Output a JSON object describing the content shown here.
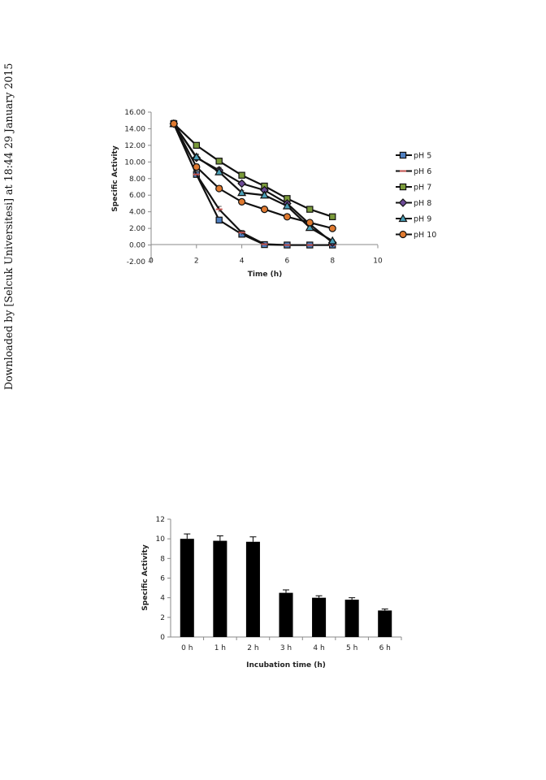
{
  "watermark": "Downloaded by [Selcuk Universitesi] at 18:44 29 January 2015",
  "chart_data": [
    {
      "type": "line",
      "xlabel": "Time (h)",
      "ylabel": "Specific Activity",
      "xlim": [
        0,
        10
      ],
      "ylim": [
        -2,
        16
      ],
      "x_ticks": [
        "0",
        "2",
        "4",
        "6",
        "8",
        "10"
      ],
      "y_ticks": [
        "-2.00",
        "0.00",
        "2.00",
        "4.00",
        "6.00",
        "8.00",
        "10.00",
        "12.00",
        "14.00",
        "16.00"
      ],
      "grid": false,
      "legend": "right",
      "x": [
        1,
        2,
        3,
        4,
        5,
        6,
        7,
        8
      ],
      "series": [
        {
          "name": "pH 5",
          "values": [
            14.6,
            8.5,
            3.0,
            1.3,
            0.05,
            0.0,
            0.0,
            0.0
          ],
          "marker": "square",
          "fill": "#4f7fc0",
          "color": "#111111"
        },
        {
          "name": "pH 6",
          "values": [
            14.6,
            8.5,
            4.3,
            1.5,
            0.1,
            0.0,
            0.0,
            0.0
          ],
          "marker": "dash",
          "fill": "#c0504d",
          "color": "#111111"
        },
        {
          "name": "pH 7",
          "values": [
            14.6,
            12.0,
            10.1,
            8.4,
            7.1,
            5.6,
            4.3,
            3.4
          ],
          "marker": "square",
          "fill": "#7a9a3a",
          "color": "#111111"
        },
        {
          "name": "pH 8",
          "values": [
            14.6,
            10.5,
            9.0,
            7.4,
            6.6,
            5.0,
            2.5,
            0.3
          ],
          "marker": "diamond",
          "fill": "#6c4a96",
          "color": "#111111"
        },
        {
          "name": "pH 9",
          "values": [
            14.6,
            10.6,
            8.8,
            6.3,
            6.0,
            4.7,
            2.1,
            0.5
          ],
          "marker": "triangle",
          "fill": "#4aa0b8",
          "color": "#111111"
        },
        {
          "name": "pH 10",
          "values": [
            14.6,
            9.4,
            6.8,
            5.2,
            4.3,
            3.4,
            2.7,
            2.0
          ],
          "marker": "circle",
          "fill": "#e07a30",
          "color": "#111111"
        }
      ],
      "error_bars": [
        0.6,
        0.5,
        0.5,
        0.4,
        0.3,
        0.3,
        0.3,
        0.2
      ]
    },
    {
      "type": "bar",
      "xlabel": "Incubation time (h)",
      "ylabel": "Specific Activity",
      "ylim": [
        0,
        12
      ],
      "y_ticks": [
        "0",
        "2",
        "4",
        "6",
        "8",
        "10",
        "12"
      ],
      "categories": [
        "0 h",
        "1 h",
        "2 h",
        "3 h",
        "4 h",
        "5 h",
        "6 h"
      ],
      "values": [
        10.0,
        9.8,
        9.7,
        4.5,
        4.0,
        3.8,
        2.7
      ],
      "errors": [
        0.5,
        0.5,
        0.5,
        0.3,
        0.2,
        0.2,
        0.15
      ],
      "color": "#000000",
      "grid": false
    }
  ]
}
